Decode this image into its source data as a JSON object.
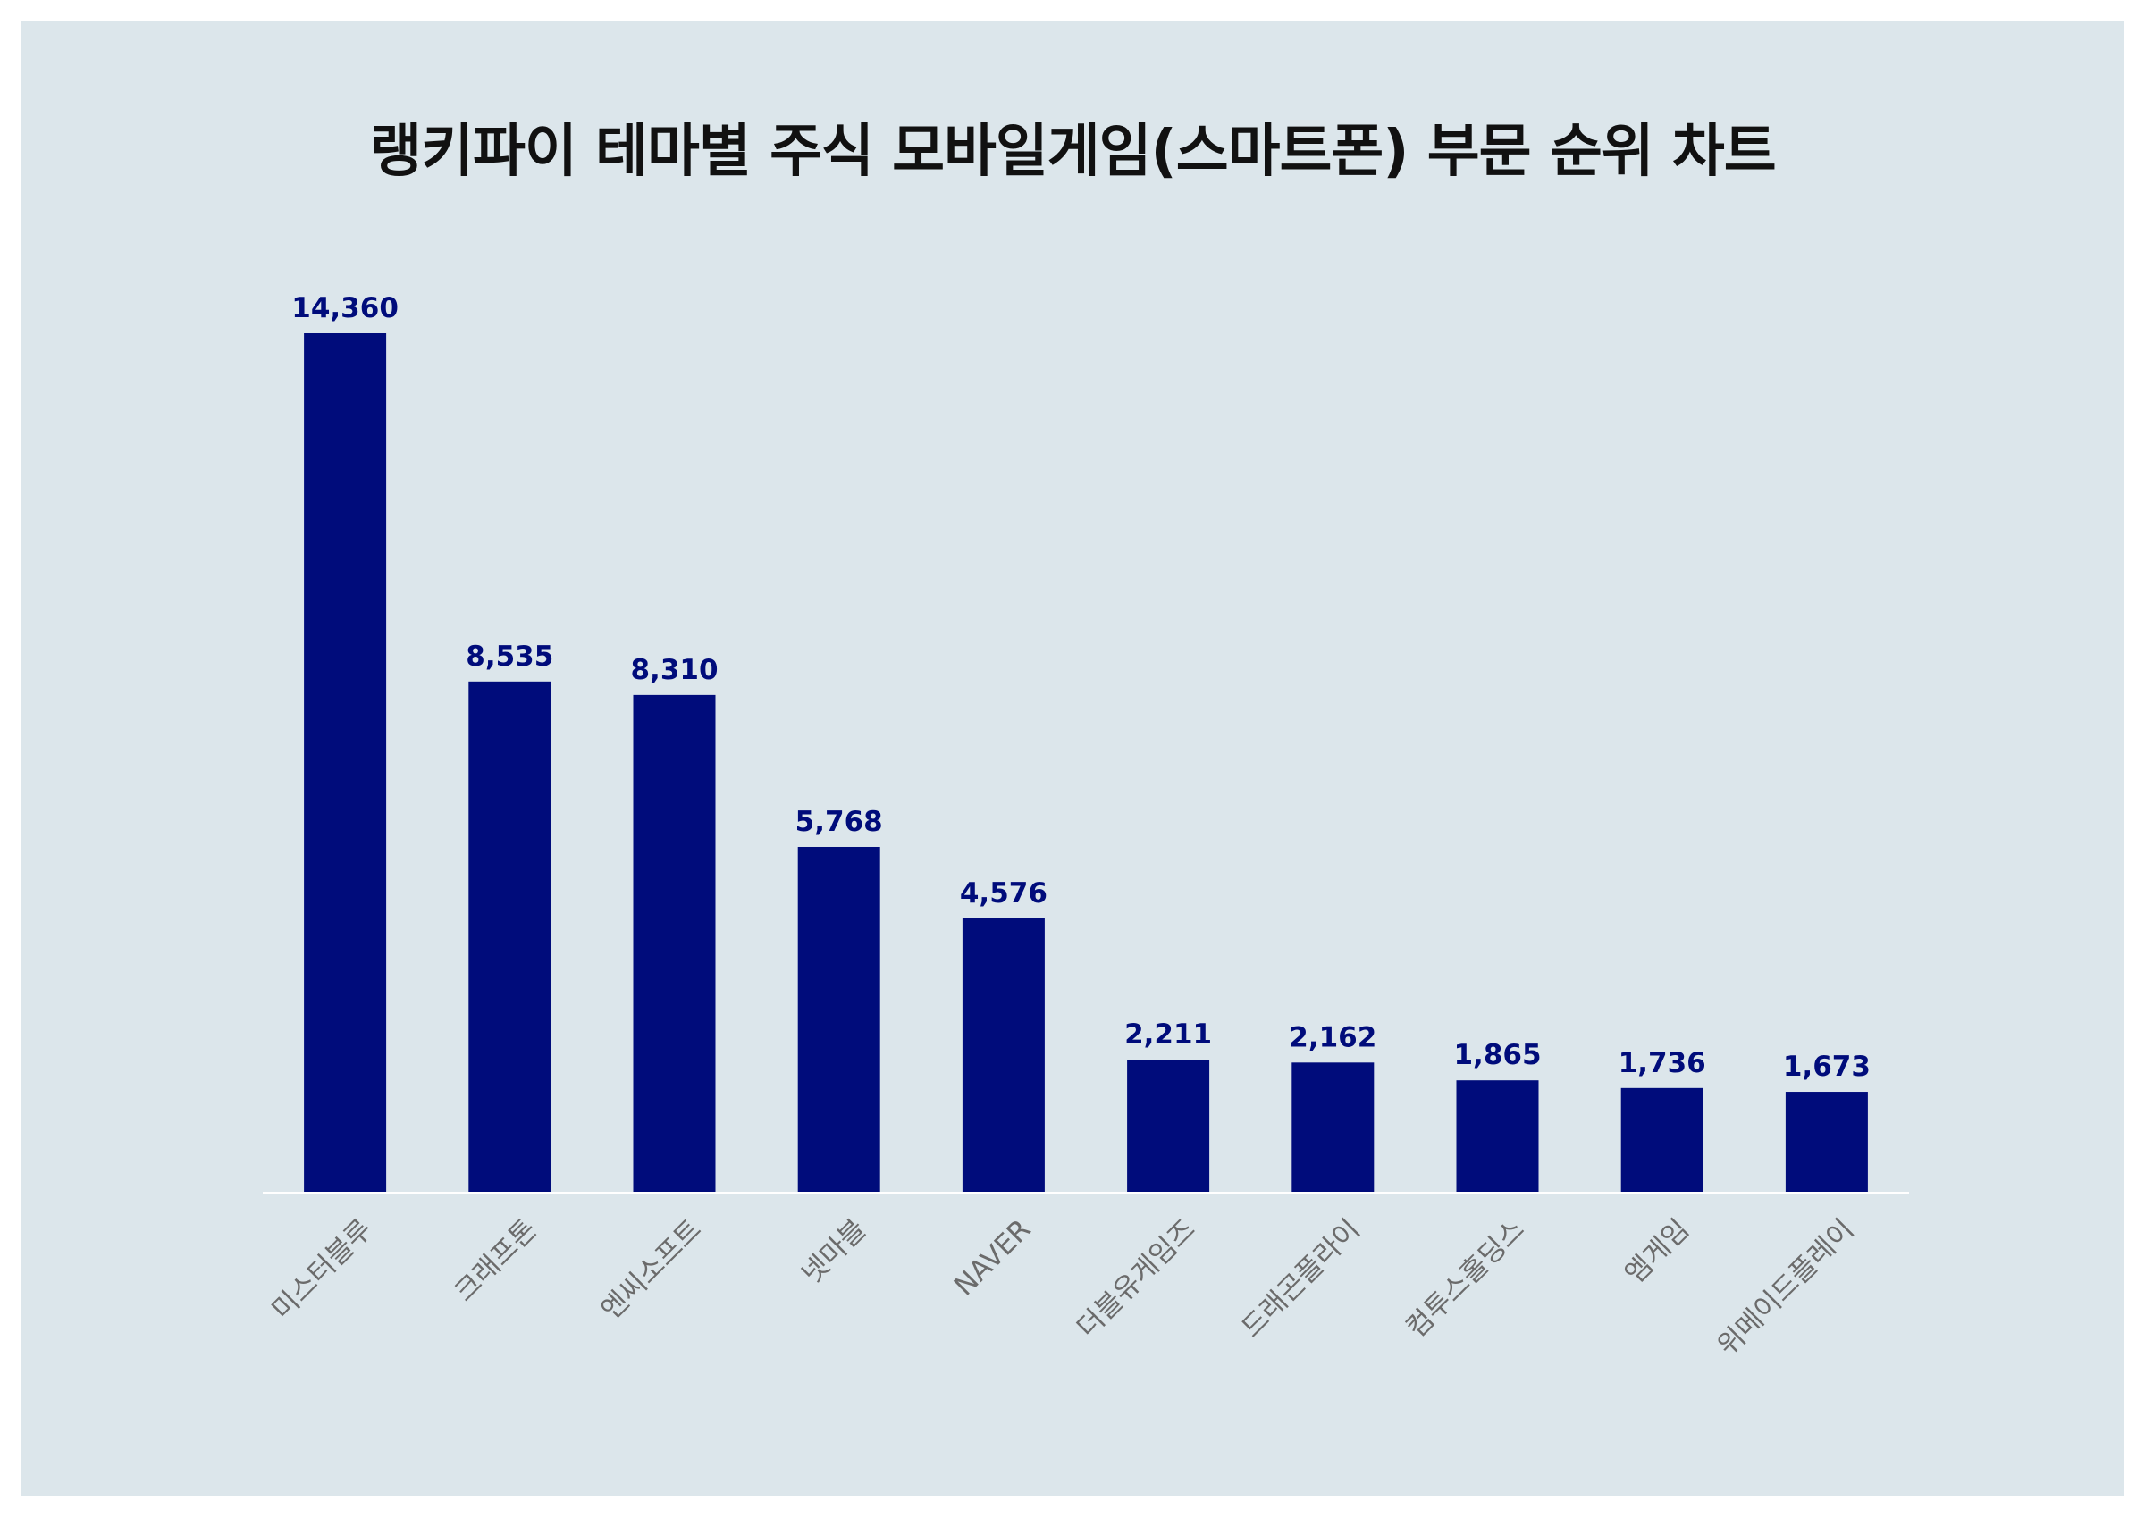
{
  "chart_data": {
    "type": "bar",
    "title": "랭키파이 테마별 주식 모바일게임(스마트폰) 부문 순위 차트",
    "categories": [
      "미스터블루",
      "크래프톤",
      "엔씨소프트",
      "넷마블",
      "NAVER",
      "더블유게임즈",
      "드래곤플라이",
      "컴투스홀딩스",
      "엠게임",
      "위메이드플레이"
    ],
    "values": [
      14360,
      8535,
      8310,
      5768,
      4576,
      2211,
      2162,
      1865,
      1736,
      1673
    ],
    "value_labels": [
      "14,360",
      "8,535",
      "8,310",
      "5,768",
      "4,576",
      "2,211",
      "2,162",
      "1,865",
      "1,736",
      "1,673"
    ],
    "xlabel": "",
    "ylabel": "",
    "ylim": [
      0,
      14360
    ],
    "grid": false,
    "legend": "none",
    "bar_color": "#000c7b",
    "background_color": "#dce6eb",
    "axis_line_color": "#ffffff"
  }
}
